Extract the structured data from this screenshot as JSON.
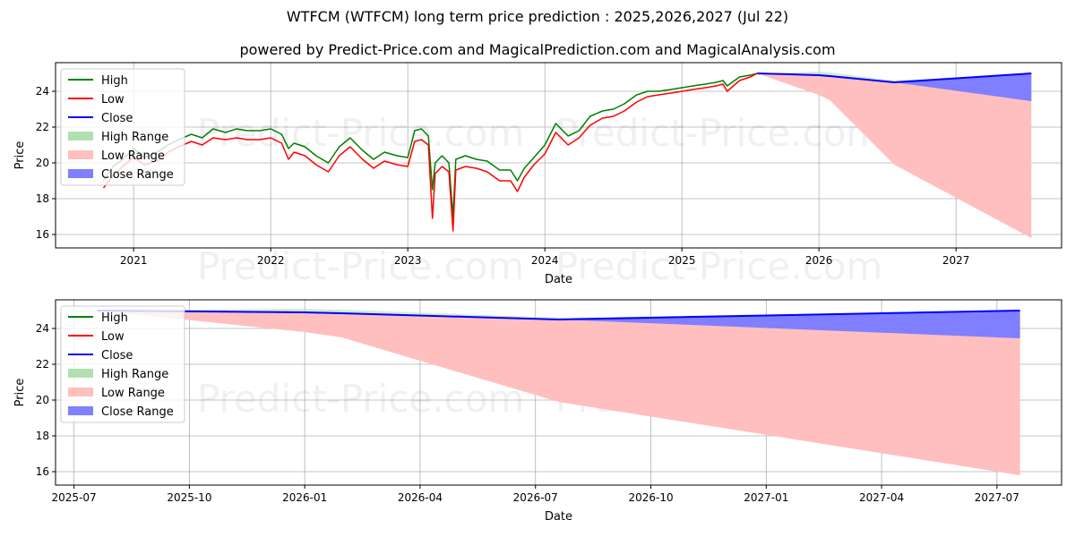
{
  "chart_data": [
    {
      "type": "line",
      "title": "WTFCM (WTFCM) long term price prediction : 2025,2026,2027 (Jul 22)",
      "subtitle": "powered by Predict-Price.com and MagicalPrediction.com and MagicalAnalysis.com",
      "xlabel": "Date",
      "ylabel": "Price",
      "xlim": [
        2020.43,
        2027.77
      ],
      "ylim": [
        15.25,
        25.6
      ],
      "xticks": [
        {
          "value": 2021.0,
          "label": "2021"
        },
        {
          "value": 2022.0,
          "label": "2022"
        },
        {
          "value": 2023.0,
          "label": "2023"
        },
        {
          "value": 2024.0,
          "label": "2024"
        },
        {
          "value": 2025.0,
          "label": "2025"
        },
        {
          "value": 2026.0,
          "label": "2026"
        },
        {
          "value": 2027.0,
          "label": "2027"
        }
      ],
      "yticks": [
        16,
        18,
        20,
        22,
        24
      ],
      "grid": true,
      "legend_position": "top-left",
      "legend": [
        "High",
        "Low",
        "Close",
        "High Range",
        "Low Range",
        "Close Range"
      ],
      "watermark": "Predict-Price.com",
      "colors": {
        "high": "#008000",
        "low": "#ff0000",
        "close": "#0000ff",
        "high_range": "#b2dfb2",
        "low_range": "#ffbfbf",
        "close_range": "#7f7fff"
      },
      "history": {
        "x": [
          2020.78,
          2020.85,
          2020.92,
          2021.0,
          2021.08,
          2021.17,
          2021.25,
          2021.33,
          2021.42,
          2021.5,
          2021.58,
          2021.67,
          2021.75,
          2021.83,
          2021.92,
          2022.0,
          2022.08,
          2022.13,
          2022.17,
          2022.25,
          2022.33,
          2022.42,
          2022.5,
          2022.58,
          2022.67,
          2022.75,
          2022.83,
          2022.92,
          2023.0,
          2023.05,
          2023.1,
          2023.15,
          2023.18,
          2023.2,
          2023.25,
          2023.3,
          2023.33,
          2023.35,
          2023.42,
          2023.5,
          2023.58,
          2023.67,
          2023.75,
          2023.8,
          2023.85,
          2023.92,
          2024.0,
          2024.08,
          2024.17,
          2024.25,
          2024.33,
          2024.42,
          2024.5,
          2024.58,
          2024.67,
          2024.75,
          2024.83,
          2024.92,
          2025.0,
          2025.08,
          2025.17,
          2025.25,
          2025.3,
          2025.33,
          2025.42,
          2025.5,
          2025.55
        ],
        "high": [
          19.0,
          19.8,
          20.2,
          20.8,
          20.3,
          20.6,
          21.0,
          21.3,
          21.6,
          21.4,
          21.9,
          21.7,
          21.9,
          21.8,
          21.8,
          21.9,
          21.6,
          20.8,
          21.1,
          20.9,
          20.4,
          20.0,
          20.9,
          21.4,
          20.7,
          20.2,
          20.6,
          20.4,
          20.3,
          21.8,
          21.9,
          21.5,
          18.5,
          20.0,
          20.4,
          20.0,
          17.0,
          20.2,
          20.4,
          20.2,
          20.1,
          19.6,
          19.6,
          19.0,
          19.7,
          20.3,
          21.0,
          22.2,
          21.5,
          21.8,
          22.6,
          22.9,
          23.0,
          23.3,
          23.8,
          24.0,
          24.0,
          24.1,
          24.2,
          24.3,
          24.4,
          24.5,
          24.6,
          24.3,
          24.8,
          24.9,
          25.0
        ],
        "low": [
          18.6,
          19.3,
          19.8,
          20.3,
          19.9,
          20.1,
          20.6,
          20.9,
          21.2,
          21.0,
          21.4,
          21.3,
          21.4,
          21.3,
          21.3,
          21.4,
          21.1,
          20.2,
          20.6,
          20.4,
          19.9,
          19.5,
          20.4,
          20.9,
          20.2,
          19.7,
          20.1,
          19.9,
          19.8,
          21.2,
          21.3,
          21.0,
          16.9,
          19.4,
          19.8,
          19.5,
          16.2,
          19.6,
          19.8,
          19.7,
          19.5,
          19.0,
          19.0,
          18.4,
          19.2,
          19.9,
          20.5,
          21.7,
          21.0,
          21.4,
          22.1,
          22.5,
          22.6,
          22.9,
          23.4,
          23.7,
          23.8,
          23.9,
          24.0,
          24.1,
          24.2,
          24.3,
          24.4,
          24.0,
          24.6,
          24.8,
          25.0
        ]
      },
      "forecast": {
        "x": [
          2025.55,
          2026.0,
          2026.08,
          2026.55,
          2027.55
        ],
        "close": [
          25.0,
          24.9,
          24.85,
          24.5,
          25.0
        ],
        "high_upper": [
          25.0,
          25.1,
          25.05,
          24.6,
          25.0
        ],
        "low_lower": [
          25.0,
          23.8,
          23.5,
          19.9,
          15.8
        ],
        "close_lower": [
          25.0,
          24.85,
          24.8,
          24.5,
          23.45
        ]
      }
    },
    {
      "type": "line",
      "xlabel": "Date",
      "ylabel": "Price",
      "xlim": [
        2025.46,
        2027.64
      ],
      "ylim": [
        15.25,
        25.6
      ],
      "xticks": [
        {
          "value": 2025.5,
          "label": "2025-07"
        },
        {
          "value": 2025.75,
          "label": "2025-10"
        },
        {
          "value": 2026.0,
          "label": "2026-01"
        },
        {
          "value": 2026.25,
          "label": "2026-04"
        },
        {
          "value": 2026.5,
          "label": "2026-07"
        },
        {
          "value": 2026.75,
          "label": "2026-10"
        },
        {
          "value": 2027.0,
          "label": "2027-01"
        },
        {
          "value": 2027.25,
          "label": "2027-04"
        },
        {
          "value": 2027.5,
          "label": "2027-07"
        }
      ],
      "yticks": [
        16,
        18,
        20,
        22,
        24
      ],
      "grid": true,
      "legend_position": "top-left",
      "legend": [
        "High",
        "Low",
        "Close",
        "High Range",
        "Low Range",
        "Close Range"
      ],
      "watermark": "Predict-Price.com",
      "forecast": {
        "x": [
          2025.55,
          2026.0,
          2026.08,
          2026.55,
          2027.55
        ],
        "close": [
          25.0,
          24.9,
          24.85,
          24.5,
          25.0
        ],
        "high_upper": [
          25.0,
          25.1,
          25.05,
          24.6,
          25.0
        ],
        "low_lower": [
          25.0,
          23.8,
          23.5,
          19.9,
          15.8
        ],
        "close_lower": [
          25.0,
          24.85,
          24.8,
          24.5,
          23.45
        ]
      }
    }
  ]
}
